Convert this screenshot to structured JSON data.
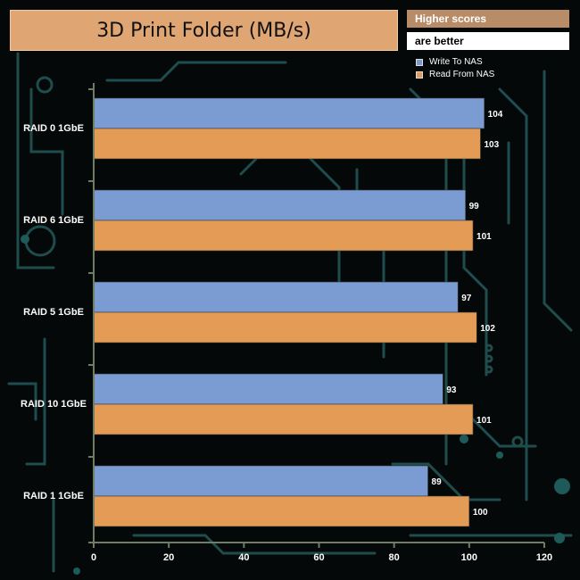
{
  "title": "3D Print Folder (MB/s)",
  "note": {
    "line1": "Higher scores",
    "line2": "are better"
  },
  "colors": {
    "write": "#7b9bd3",
    "read": "#e39b56",
    "axis": "#6e7d64",
    "title_bg": "#dfa673",
    "background": "#050808",
    "circuit": "#1f4c4c"
  },
  "chart_data": {
    "type": "bar",
    "orientation": "horizontal",
    "title": "3D Print Folder (MB/s)",
    "categories": [
      "RAID 0 1GbE",
      "RAID 6 1GbE",
      "RAID 5 1GbE",
      "RAID 10 1GbE",
      "RAID 1 1GbE"
    ],
    "series": [
      {
        "name": "Write To NAS",
        "color": "#7b9bd3",
        "values": [
          104,
          99,
          97,
          93,
          89
        ]
      },
      {
        "name": "Read From NAS",
        "color": "#e39b56",
        "values": [
          103,
          101,
          102,
          101,
          100
        ]
      }
    ],
    "xlim": [
      0,
      120
    ],
    "xticks": [
      0,
      20,
      40,
      60,
      80,
      100,
      120
    ],
    "xlabel": "",
    "ylabel": "",
    "legend_position": "top-right",
    "grid": false,
    "data_labels": true
  }
}
